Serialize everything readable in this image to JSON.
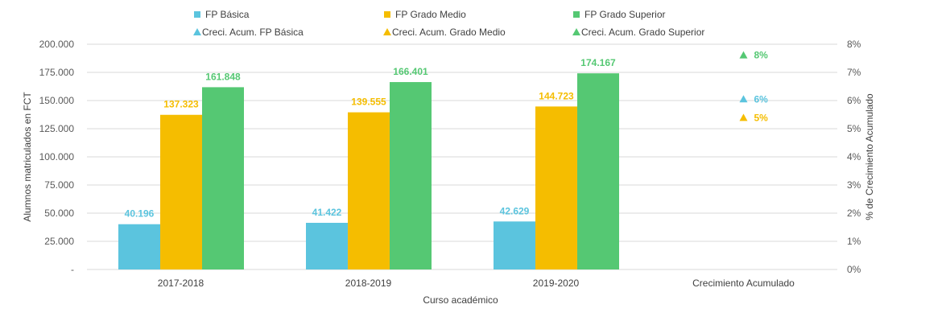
{
  "chart_data": {
    "type": "bar",
    "categories": [
      "2017-2018",
      "2018-2019",
      "2019-2020",
      "Crecimiento Acumulado"
    ],
    "series": [
      {
        "name": "FP Básica",
        "values": [
          40196,
          41422,
          42629,
          null
        ],
        "labels": [
          "40.196",
          "41.422",
          "42.629",
          ""
        ],
        "color": "#5BC4DE"
      },
      {
        "name": "FP Grado Medio",
        "values": [
          137323,
          139555,
          144723,
          null
        ],
        "labels": [
          "137.323",
          "139.555",
          "144.723",
          ""
        ],
        "color": "#F5BD00"
      },
      {
        "name": "FP Grado Superior",
        "values": [
          161848,
          166401,
          174167,
          null
        ],
        "labels": [
          "161.848",
          "166.401",
          "174.167",
          ""
        ],
        "color": "#55C873"
      }
    ],
    "growth_series": [
      {
        "name": "Creci. Acum. FP Básica",
        "category": "Crecimiento Acumulado",
        "value": 6.05,
        "label": "6%",
        "color": "#5BC4DE"
      },
      {
        "name": "Creci. Acum. Grado Medio",
        "category": "Crecimiento Acumulado",
        "value": 5.39,
        "label": "5%",
        "color": "#F5BD00"
      },
      {
        "name": "Creci. Acum. Grado Superior",
        "category": "Crecimiento Acumulado",
        "value": 7.61,
        "label": "8%",
        "color": "#55C873"
      }
    ],
    "xlabel": "Curso académico",
    "ylabel": "Alumnos matriculados en FCT",
    "y2label": "% de Crecimiento Acumulado",
    "ylim": [
      0,
      200000
    ],
    "y2lim": [
      0,
      8
    ],
    "yticks": [
      "-",
      "25.000",
      "50.000",
      "75.000",
      "100.000",
      "125.000",
      "150.000",
      "175.000",
      "200.000"
    ],
    "y2ticks": [
      "0%",
      "1%",
      "2%",
      "3%",
      "4%",
      "5%",
      "6%",
      "7%",
      "8%"
    ],
    "grid": true,
    "legend": "top"
  }
}
